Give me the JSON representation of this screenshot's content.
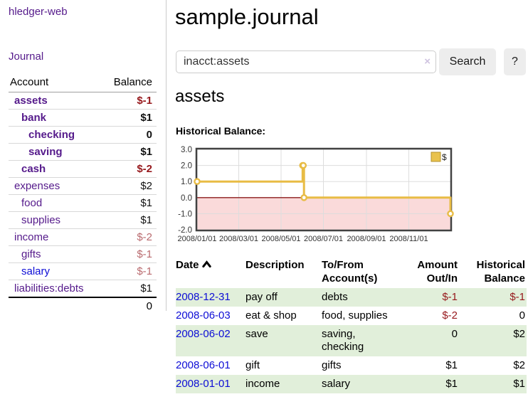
{
  "app": {
    "brand": "hledger-web",
    "nav_journal": "Journal"
  },
  "sidebar": {
    "header": {
      "account": "Account",
      "balance": "Balance"
    },
    "accounts": [
      {
        "name": "assets",
        "balance": "$-1",
        "depth": 0,
        "bold": true,
        "neg": "strong",
        "link": "purple"
      },
      {
        "name": "bank",
        "balance": "$1",
        "depth": 1,
        "bold": true,
        "neg": "none",
        "link": "purple"
      },
      {
        "name": "checking",
        "balance": "0",
        "depth": 2,
        "bold": true,
        "neg": "none",
        "link": "purple"
      },
      {
        "name": "saving",
        "balance": "$1",
        "depth": 2,
        "bold": true,
        "neg": "none",
        "link": "purple"
      },
      {
        "name": "cash",
        "balance": "$-2",
        "depth": 1,
        "bold": true,
        "neg": "strong",
        "link": "purple"
      },
      {
        "name": "expenses",
        "balance": "$2",
        "depth": 0,
        "bold": false,
        "neg": "none",
        "link": "purple"
      },
      {
        "name": "food",
        "balance": "$1",
        "depth": 1,
        "bold": false,
        "neg": "none",
        "link": "purple"
      },
      {
        "name": "supplies",
        "balance": "$1",
        "depth": 1,
        "bold": false,
        "neg": "none",
        "link": "purple"
      },
      {
        "name": "income",
        "balance": "$-2",
        "depth": 0,
        "bold": false,
        "neg": "soft",
        "link": "purple"
      },
      {
        "name": "gifts",
        "balance": "$-1",
        "depth": 1,
        "bold": false,
        "neg": "soft",
        "link": "purple"
      },
      {
        "name": "salary",
        "balance": "$-1",
        "depth": 1,
        "bold": false,
        "neg": "soft",
        "link": "blue"
      },
      {
        "name": "liabilities:debts",
        "balance": "$1",
        "depth": 0,
        "bold": false,
        "neg": "none",
        "link": "purple"
      }
    ],
    "total": "0"
  },
  "header": {
    "title": "sample.journal"
  },
  "search": {
    "value": "inacct:assets",
    "clear_icon": "×",
    "button": "Search",
    "help_button": "?"
  },
  "account_page": {
    "heading": "assets",
    "chart_label": "Historical Balance:"
  },
  "chart_data": {
    "type": "line",
    "step": true,
    "series": [
      {
        "name": "$",
        "color": "#e8bc45",
        "points": [
          [
            "2008-01-01",
            1
          ],
          [
            "2008-06-01",
            2
          ],
          [
            "2008-06-02",
            2
          ],
          [
            "2008-06-03",
            0
          ],
          [
            "2008-12-31",
            -1
          ]
        ]
      }
    ],
    "x_range": [
      "2008-01-01",
      "2008-12-31"
    ],
    "x_ticks": [
      "2008/01/01",
      "2008/03/01",
      "2008/05/01",
      "2008/07/01",
      "2008/09/01",
      "2008/11/01"
    ],
    "y_ticks": [
      "3.0",
      "2.0",
      "1.0",
      "0.0",
      "-1.0",
      "-2.0"
    ],
    "ylim": [
      -2,
      3
    ],
    "legend": {
      "label": "$",
      "position": "top-right",
      "swatch_fill": "#e9c24d",
      "swatch_stroke": "#b3922e"
    },
    "colors": {
      "grid": "#dddddd",
      "border": "#424242",
      "zero_line": "#8b1c1c",
      "negative_region": "#fadada",
      "tick_text": "#333333",
      "marker_fill": "#ffffff"
    }
  },
  "register": {
    "columns": [
      {
        "line1": "Date",
        "line2": "",
        "align": "left",
        "cls": "c-date",
        "sortable": true
      },
      {
        "line1": "Description",
        "line2": "",
        "align": "left",
        "cls": "c-desc",
        "sortable": false
      },
      {
        "line1": "To/From",
        "line2": "Account(s)",
        "align": "left",
        "cls": "c-tofrom",
        "sortable": false
      },
      {
        "line1": "Amount",
        "line2": "Out/In",
        "align": "right",
        "cls": "c-amount",
        "sortable": false
      },
      {
        "line1": "Historical",
        "line2": "Balance",
        "align": "right",
        "cls": "c-bal",
        "sortable": false
      }
    ],
    "rows": [
      {
        "date": "2008-12-31",
        "description": "pay off",
        "accounts": "debts",
        "amount": "$-1",
        "balance": "$-1",
        "amount_neg": true,
        "balance_neg": true
      },
      {
        "date": "2008-06-03",
        "description": "eat & shop",
        "accounts": "food, supplies",
        "amount": "$-2",
        "balance": "0",
        "amount_neg": true,
        "balance_neg": false
      },
      {
        "date": "2008-06-02",
        "description": "save",
        "accounts": "saving, checking",
        "amount": "0",
        "balance": "$2",
        "amount_neg": false,
        "balance_neg": false
      },
      {
        "date": "2008-06-01",
        "description": "gift",
        "accounts": "gifts",
        "amount": "$1",
        "balance": "$2",
        "amount_neg": false,
        "balance_neg": false
      },
      {
        "date": "2008-01-01",
        "description": "income",
        "accounts": "salary",
        "amount": "$1",
        "balance": "$1",
        "amount_neg": false,
        "balance_neg": false
      }
    ]
  }
}
